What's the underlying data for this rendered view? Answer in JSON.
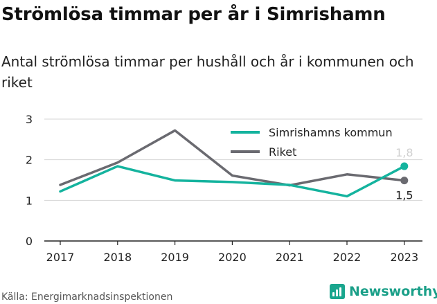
{
  "title": "Strömlösa timmar per år i Simrishamn",
  "subtitle": "Antal strömlösa timmar per hushåll och år i kommunen och riket",
  "source": "Källa: Energimarknadsinspektionen",
  "brand": "Newsworthy",
  "colors": {
    "kommun": "#14b39e",
    "riket": "#6a6a70",
    "grid": "#d6d6d6",
    "axis": "#222222"
  },
  "chart_data": {
    "type": "line",
    "x": [
      "2017",
      "2018",
      "2019",
      "2020",
      "2021",
      "2022",
      "2023"
    ],
    "ylim": [
      0,
      3
    ],
    "yticks": [
      "0",
      "1",
      "2",
      "3"
    ],
    "grid": true,
    "legend": "top-right",
    "series": [
      {
        "name": "Simrishamns kommun",
        "values": [
          1.22,
          1.84,
          1.49,
          1.45,
          1.38,
          1.1,
          1.84
        ],
        "end_label": "1,8"
      },
      {
        "name": "Riket",
        "values": [
          1.38,
          1.93,
          2.72,
          1.61,
          1.37,
          1.64,
          1.49
        ],
        "end_label": "1,5"
      }
    ]
  }
}
